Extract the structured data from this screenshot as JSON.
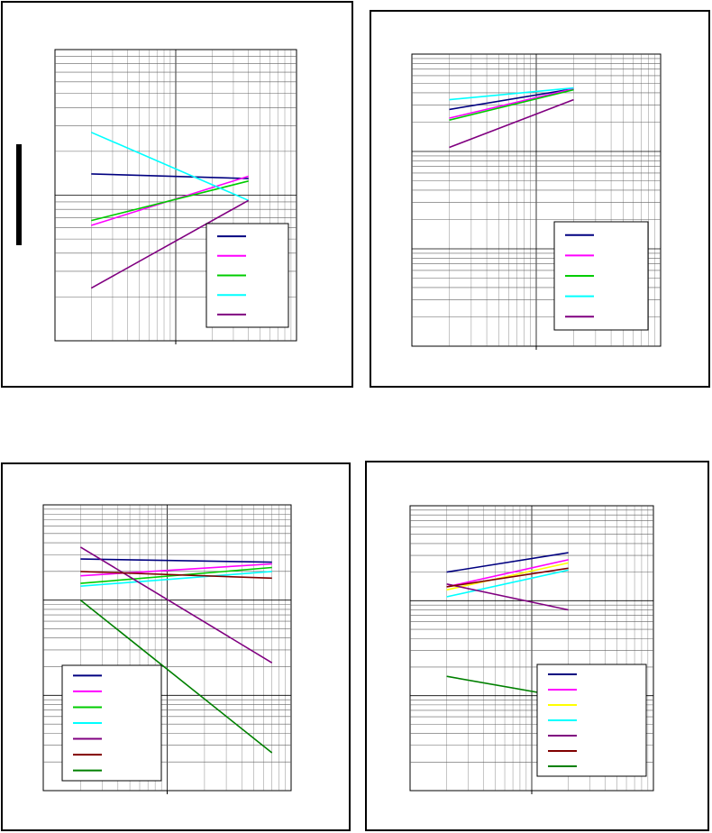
{
  "chart_data": [
    {
      "type": "line",
      "xscale": "log",
      "xlim": [
        1,
        100
      ],
      "yscale": "log",
      "ylim": [
        10,
        1000
      ],
      "grid": true,
      "legend_position": "bottom-right",
      "series": [
        {
          "color": "#000080",
          "x": [
            2,
            40
          ],
          "y": [
            140,
            130
          ]
        },
        {
          "color": "#ff00ff",
          "x": [
            2,
            40
          ],
          "y": [
            62,
            135
          ]
        },
        {
          "color": "#00cc00",
          "x": [
            2,
            40
          ],
          "y": [
            67,
            125
          ]
        },
        {
          "color": "#00ffff",
          "x": [
            2,
            40
          ],
          "y": [
            270,
            92
          ]
        },
        {
          "color": "#800080",
          "x": [
            2,
            40
          ],
          "y": [
            23,
            92
          ]
        }
      ]
    },
    {
      "type": "line",
      "xscale": "log",
      "xlim": [
        1,
        100
      ],
      "yscale": "log",
      "ylim": [
        0.1,
        100
      ],
      "grid": true,
      "legend_position": "bottom-right",
      "series": [
        {
          "color": "#000080",
          "x": [
            2,
            20
          ],
          "y": [
            27,
            44
          ]
        },
        {
          "color": "#ff00ff",
          "x": [
            2,
            20
          ],
          "y": [
            22,
            44
          ]
        },
        {
          "color": "#00cc00",
          "x": [
            2,
            20
          ],
          "y": [
            21,
            43
          ]
        },
        {
          "color": "#00ffff",
          "x": [
            2,
            20
          ],
          "y": [
            34,
            45
          ]
        },
        {
          "color": "#800080",
          "x": [
            2,
            20
          ],
          "y": [
            11,
            34
          ]
        }
      ]
    },
    {
      "type": "line",
      "xscale": "log",
      "xlim": [
        1,
        100
      ],
      "yscale": "log",
      "ylim": [
        0.1,
        100
      ],
      "grid": true,
      "legend_position": "bottom-left",
      "series": [
        {
          "color": "#000080",
          "x": [
            2,
            70
          ],
          "y": [
            27,
            25
          ]
        },
        {
          "color": "#ff00ff",
          "x": [
            2,
            70
          ],
          "y": [
            18,
            24
          ]
        },
        {
          "color": "#00cc00",
          "x": [
            2,
            70
          ],
          "y": [
            15,
            22
          ]
        },
        {
          "color": "#00ffff",
          "x": [
            2,
            70
          ],
          "y": [
            14,
            20
          ]
        },
        {
          "color": "#800080",
          "x": [
            2,
            70
          ],
          "y": [
            36,
            2.2
          ]
        },
        {
          "color": "#800000",
          "x": [
            2,
            70
          ],
          "y": [
            20,
            17
          ]
        },
        {
          "color": "#008000",
          "x": [
            2,
            70
          ],
          "y": [
            10,
            0.25
          ]
        }
      ]
    },
    {
      "type": "line",
      "xscale": "log",
      "xlim": [
        1,
        100
      ],
      "yscale": "log",
      "ylim": [
        0.1,
        100
      ],
      "grid": true,
      "legend_position": "bottom-right",
      "series": [
        {
          "color": "#000080",
          "x": [
            2,
            20
          ],
          "y": [
            20,
            32
          ]
        },
        {
          "color": "#ff00ff",
          "x": [
            2,
            20
          ],
          "y": [
            14,
            27
          ]
        },
        {
          "color": "#ffff00",
          "x": [
            2,
            20
          ],
          "y": [
            13,
            25
          ]
        },
        {
          "color": "#00ffff",
          "x": [
            2,
            20
          ],
          "y": [
            11,
            21
          ]
        },
        {
          "color": "#800080",
          "x": [
            2,
            20
          ],
          "y": [
            15,
            8
          ]
        },
        {
          "color": "#800000",
          "x": [
            2,
            20
          ],
          "y": [
            14,
            22
          ]
        },
        {
          "color": "#008000",
          "x": [
            2,
            20
          ],
          "y": [
            1.6,
            0.95
          ]
        }
      ]
    }
  ]
}
